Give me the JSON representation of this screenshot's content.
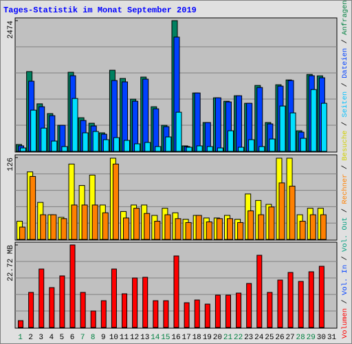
{
  "title": "Tages-Statistik im Monat September 2019",
  "legend_separator": "/",
  "legend": [
    {
      "name": "Volumen",
      "color": "#ff0000"
    },
    {
      "name": "Vol. In",
      "color": "#0040ff"
    },
    {
      "name": "Vol. Out",
      "color": "#00a080"
    },
    {
      "name": "Rechner",
      "color": "#ff8000"
    },
    {
      "name": "Besuche",
      "color": "#d0d000"
    },
    {
      "name": "Seiten",
      "color": "#00c0ff"
    },
    {
      "name": "Dateien",
      "color": "#0040ff"
    },
    {
      "name": "Anfragen",
      "color": "#008040"
    }
  ],
  "chart_data": [
    {
      "type": "bar",
      "ylim": [
        0,
        2474
      ],
      "yticks": [
        2474
      ],
      "categories": [
        "1",
        "2",
        "3",
        "4",
        "5",
        "6",
        "7",
        "8",
        "9",
        "10",
        "11",
        "12",
        "13",
        "14",
        "15",
        "16",
        "17",
        "18",
        "19",
        "20",
        "21",
        "22",
        "23",
        "24",
        "25",
        "26",
        "27",
        "28",
        "29",
        "30",
        "31"
      ],
      "category_colors": [
        "#008040",
        "#000000",
        "#000000",
        "#000000",
        "#000000",
        "#000000",
        "#008040",
        "#008040",
        "#000000",
        "#000000",
        "#000000",
        "#000000",
        "#000000",
        "#008040",
        "#008040",
        "#000000",
        "#000000",
        "#000000",
        "#000000",
        "#000000",
        "#008040",
        "#008040",
        "#000000",
        "#000000",
        "#000000",
        "#000000",
        "#000000",
        "#008040",
        "#008040",
        "#000000",
        "#000000"
      ],
      "series": [
        {
          "name": "Anfragen",
          "color": "#008060",
          "values": [
            130,
            1510,
            900,
            715,
            494,
            1497,
            637,
            533,
            351,
            1536,
            1380,
            988,
            1406,
            845,
            494,
            2474,
            104,
            1105,
            546,
            1014,
            949,
            1053,
            910,
            1248,
            546,
            1261,
            1352,
            390,
            1456,
            1430,
            null
          ]
        },
        {
          "name": "Dateien",
          "color": "#0040ff",
          "values": [
            104,
            1328,
            845,
            676,
            494,
            1432,
            585,
            481,
            325,
            1341,
            1315,
            949,
            1367,
            806,
            468,
            2163,
            91,
            1105,
            546,
            1014,
            936,
            1053,
            910,
            1209,
            520,
            1235,
            1341,
            364,
            1432,
            1393,
            null
          ]
        },
        {
          "name": "Seiten",
          "color": "#00e0ff",
          "values": [
            65,
            780,
            440,
            195,
            91,
            1001,
            351,
            377,
            221,
            260,
            208,
            143,
            169,
            91,
            273,
            741,
            78,
            104,
            91,
            65,
            390,
            78,
            221,
            91,
            234,
            858,
            728,
            247,
            1170,
            910,
            null
          ]
        }
      ]
    },
    {
      "type": "bar",
      "ylim": [
        0,
        126
      ],
      "yticks": [
        126
      ],
      "series": [
        {
          "name": "Besuche",
          "color": "#ffff00",
          "values": [
            28,
            104,
            57,
            38,
            34,
            116,
            83,
            99,
            53,
            125,
            43,
            53,
            53,
            37,
            48,
            41,
            31,
            37,
            33,
            33,
            37,
            31,
            70,
            60,
            54,
            125,
            125,
            38,
            48,
            48,
            null
          ]
        },
        {
          "name": "Rechner",
          "color": "#ff8000",
          "values": [
            19,
            97,
            38,
            38,
            32,
            53,
            53,
            53,
            41,
            116,
            33,
            48,
            40,
            28,
            38,
            32,
            26,
            37,
            27,
            32,
            32,
            26,
            44,
            38,
            50,
            87,
            82,
            28,
            38,
            38,
            null
          ]
        }
      ]
    },
    {
      "type": "bar",
      "ylim": [
        0,
        22.72
      ],
      "yticks": [
        {
          "value": 22.72,
          "label": "22.72 MB"
        }
      ],
      "series": [
        {
          "name": "Volumen",
          "color": "#ff0000",
          "values": [
            1.89,
            9.66,
            16.09,
            10.98,
            14.2,
            22.72,
            9.66,
            4.54,
            7.38,
            16.09,
            9.28,
            13.63,
            13.82,
            7.38,
            7.38,
            19.69,
            6.82,
            7.57,
            6.44,
            8.9,
            8.9,
            9.47,
            12.12,
            19.88,
            9.66,
            13.06,
            15.15,
            12.68,
            15.34,
            16.85,
            null
          ]
        }
      ]
    }
  ]
}
